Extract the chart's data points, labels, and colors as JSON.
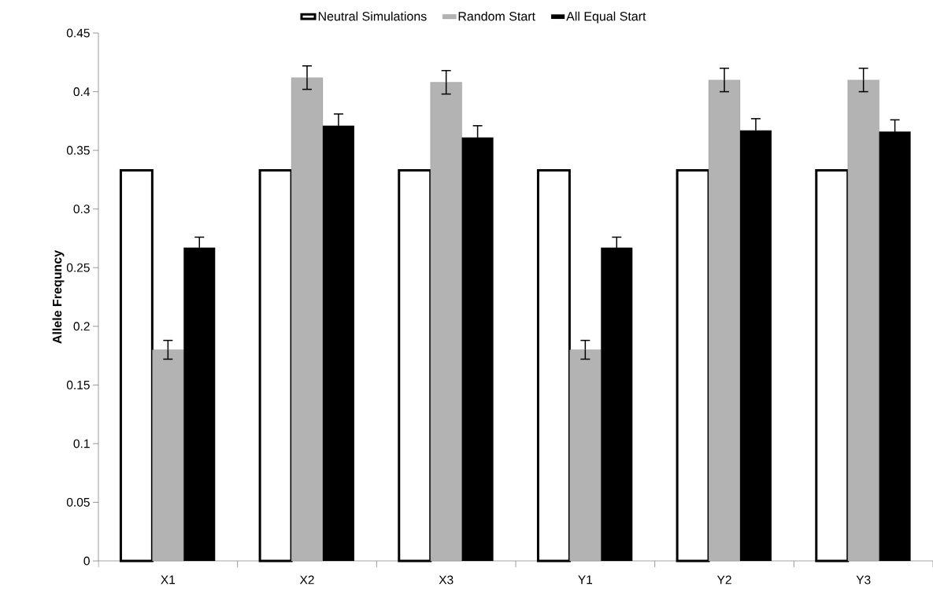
{
  "chart_data": {
    "type": "bar",
    "ylabel": "Allele Frequncy",
    "categories": [
      "X1",
      "X2",
      "X3",
      "Y1",
      "Y2",
      "Y3"
    ],
    "series": [
      {
        "name": "Neutral Simulations",
        "color": "#ffffff",
        "values": [
          0.333,
          0.333,
          0.333,
          0.333,
          0.333,
          0.333
        ]
      },
      {
        "name": "Random Start",
        "color": "#b3b3b3",
        "values": [
          0.18,
          0.412,
          0.408,
          0.18,
          0.41,
          0.41
        ],
        "errors": [
          0.008,
          0.01,
          0.01,
          0.008,
          0.01,
          0.01
        ]
      },
      {
        "name": "All Equal Start",
        "color": "#000000",
        "values": [
          0.267,
          0.371,
          0.361,
          0.267,
          0.367,
          0.366
        ],
        "errors": [
          0.009,
          0.01,
          0.01,
          0.009,
          0.01,
          0.01
        ]
      }
    ],
    "ylim": [
      0,
      0.45
    ],
    "yticks": [
      0,
      0.05,
      0.1,
      0.15,
      0.2,
      0.25,
      0.3,
      0.35,
      0.4,
      0.45
    ],
    "grid": false,
    "legend": "top"
  }
}
